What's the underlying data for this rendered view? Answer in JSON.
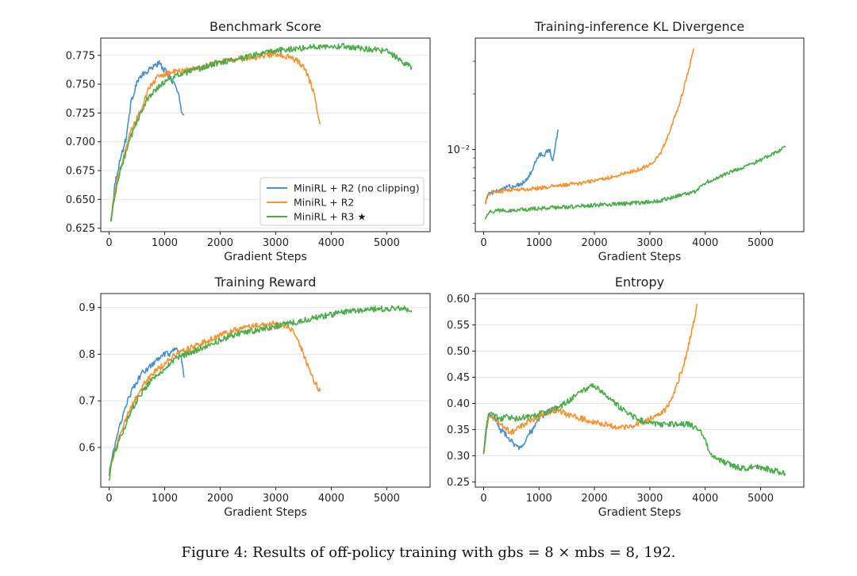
{
  "figure_caption": "Figure 4: Results of off-policy training with gbs = 8 × mbs = 8, 192.",
  "series_colors": {
    "r2_noclip": "#4a90c8",
    "r2": "#f5922f",
    "r3": "#4cac4c"
  },
  "chart_data": [
    {
      "type": "line",
      "title": "Benchmark Score",
      "xlabel": "Gradient Steps",
      "ylabel": "",
      "xlim": [
        -150,
        5780
      ],
      "ylim": [
        0.622,
        0.79
      ],
      "yscale": "linear",
      "xticks": [
        0,
        1000,
        2000,
        3000,
        4000,
        5000
      ],
      "xtick_labels": [
        "0",
        "1000",
        "2000",
        "3000",
        "4000",
        "5000"
      ],
      "yticks": [
        0.625,
        0.65,
        0.675,
        0.7,
        0.725,
        0.75,
        0.775
      ],
      "ytick_labels": [
        "0.625",
        "0.650",
        "0.675",
        "0.700",
        "0.725",
        "0.750",
        "0.775"
      ],
      "grid": "horizontal",
      "legend": "bottom-right",
      "legend_entries": [
        "MiniRL + R2 (no clipping)",
        "MiniRL + R2",
        "MiniRL + R3 ★"
      ],
      "series": [
        {
          "name": "MiniRL + R2 (no clipping)",
          "color_key": "r2_noclip",
          "x": [
            30,
            100,
            200,
            300,
            400,
            500,
            600,
            700,
            800,
            900,
            1000,
            1100,
            1200,
            1260,
            1300,
            1350
          ],
          "y": [
            0.63,
            0.662,
            0.685,
            0.702,
            0.735,
            0.752,
            0.758,
            0.761,
            0.766,
            0.768,
            0.762,
            0.756,
            0.748,
            0.738,
            0.727,
            0.723
          ]
        },
        {
          "name": "MiniRL + R2",
          "color_key": "r2",
          "x": [
            30,
            100,
            200,
            300,
            400,
            500,
            600,
            700,
            800,
            900,
            1000,
            1200,
            1400,
            1600,
            1800,
            2000,
            2200,
            2400,
            2600,
            2800,
            3000,
            3200,
            3400,
            3500,
            3600,
            3700,
            3800
          ],
          "y": [
            0.63,
            0.655,
            0.677,
            0.695,
            0.71,
            0.72,
            0.73,
            0.745,
            0.752,
            0.757,
            0.759,
            0.761,
            0.762,
            0.764,
            0.767,
            0.77,
            0.771,
            0.772,
            0.773,
            0.775,
            0.776,
            0.774,
            0.77,
            0.765,
            0.755,
            0.74,
            0.715
          ]
        },
        {
          "name": "MiniRL + R3 ★",
          "color_key": "r3",
          "x": [
            30,
            100,
            200,
            300,
            400,
            500,
            600,
            700,
            800,
            1000,
            1200,
            1400,
            1600,
            1800,
            2000,
            2200,
            2400,
            2600,
            2800,
            3000,
            3200,
            3400,
            3600,
            3800,
            4000,
            4200,
            4400,
            4600,
            4800,
            5000,
            5200,
            5300,
            5400,
            5450
          ],
          "y": [
            0.63,
            0.652,
            0.675,
            0.69,
            0.705,
            0.718,
            0.728,
            0.737,
            0.744,
            0.752,
            0.757,
            0.76,
            0.763,
            0.766,
            0.769,
            0.771,
            0.773,
            0.775,
            0.777,
            0.779,
            0.78,
            0.781,
            0.782,
            0.783,
            0.783,
            0.783,
            0.782,
            0.781,
            0.78,
            0.778,
            0.773,
            0.768,
            0.766,
            0.765
          ]
        }
      ]
    },
    {
      "type": "line",
      "title": "Training-inference KL Divergence",
      "xlabel": "Gradient Steps",
      "ylabel": "",
      "xlim": [
        -150,
        5780
      ],
      "ylim": [
        0.0036,
        0.04
      ],
      "yscale": "log",
      "xticks": [
        0,
        1000,
        2000,
        3000,
        4000,
        5000
      ],
      "xtick_labels": [
        "0",
        "1000",
        "2000",
        "3000",
        "4000",
        "5000"
      ],
      "yticks": [
        0.01
      ],
      "ytick_labels": [
        "10⁻²"
      ],
      "grid": "none",
      "legend": "none",
      "series": [
        {
          "name": "MiniRL + R2 (no clipping)",
          "color_key": "r2_noclip",
          "x": [
            30,
            100,
            200,
            300,
            400,
            450,
            500,
            600,
            700,
            800,
            850,
            900,
            950,
            1000,
            1050,
            1100,
            1150,
            1200,
            1250,
            1300,
            1350
          ],
          "y": [
            0.0052,
            0.0058,
            0.0059,
            0.006,
            0.0062,
            0.0064,
            0.0063,
            0.0064,
            0.0066,
            0.007,
            0.0075,
            0.008,
            0.0088,
            0.0093,
            0.0095,
            0.0094,
            0.0098,
            0.0099,
            0.0085,
            0.011,
            0.0128
          ]
        },
        {
          "name": "MiniRL + R2",
          "color_key": "r2",
          "x": [
            30,
            100,
            200,
            400,
            600,
            800,
            1000,
            1200,
            1400,
            1600,
            1800,
            2000,
            2200,
            2400,
            2600,
            2800,
            3000,
            3100,
            3200,
            3300,
            3400,
            3500,
            3600,
            3700,
            3800
          ],
          "y": [
            0.0052,
            0.0058,
            0.0059,
            0.006,
            0.0061,
            0.0061,
            0.0062,
            0.0063,
            0.0064,
            0.0065,
            0.0066,
            0.0068,
            0.007,
            0.0072,
            0.0075,
            0.0078,
            0.0083,
            0.0088,
            0.0097,
            0.0113,
            0.0135,
            0.0163,
            0.0205,
            0.027,
            0.035
          ]
        },
        {
          "name": "MiniRL + R3 ★",
          "color_key": "r3",
          "x": [
            30,
            100,
            300,
            600,
            1000,
            1500,
            2000,
            2500,
            3000,
            3200,
            3400,
            3600,
            3800,
            3900,
            4000,
            4200,
            4400,
            4600,
            4800,
            5000,
            5200,
            5400,
            5450
          ],
          "y": [
            0.0043,
            0.0046,
            0.0047,
            0.0047,
            0.0048,
            0.0049,
            0.005,
            0.0051,
            0.0052,
            0.0053,
            0.0055,
            0.0057,
            0.0059,
            0.0062,
            0.0066,
            0.007,
            0.0074,
            0.0078,
            0.0083,
            0.0088,
            0.0094,
            0.0101,
            0.0103
          ]
        }
      ]
    },
    {
      "type": "line",
      "title": "Training Reward",
      "xlabel": "Gradient Steps",
      "ylabel": "",
      "xlim": [
        -150,
        5780
      ],
      "ylim": [
        0.515,
        0.93
      ],
      "yscale": "linear",
      "xticks": [
        0,
        1000,
        2000,
        3000,
        4000,
        5000
      ],
      "xtick_labels": [
        "0",
        "1000",
        "2000",
        "3000",
        "4000",
        "5000"
      ],
      "yticks": [
        0.6,
        0.7,
        0.8,
        0.9
      ],
      "ytick_labels": [
        "0.6",
        "0.7",
        "0.8",
        "0.9"
      ],
      "grid": "horizontal",
      "legend": "none",
      "series": [
        {
          "name": "MiniRL + R2 (no clipping)",
          "color_key": "r2_noclip",
          "x": [
            0,
            50,
            100,
            200,
            300,
            400,
            500,
            600,
            700,
            800,
            900,
            1000,
            1100,
            1200,
            1300,
            1350
          ],
          "y": [
            0.54,
            0.58,
            0.6,
            0.65,
            0.69,
            0.72,
            0.74,
            0.76,
            0.77,
            0.78,
            0.79,
            0.8,
            0.8,
            0.81,
            0.79,
            0.75
          ]
        },
        {
          "name": "MiniRL + R2",
          "color_key": "r2",
          "x": [
            0,
            50,
            100,
            200,
            300,
            400,
            600,
            800,
            1000,
            1200,
            1400,
            1600,
            1800,
            2000,
            2200,
            2400,
            2600,
            2800,
            3000,
            3200,
            3300,
            3400,
            3500,
            3600,
            3700,
            3800
          ],
          "y": [
            0.54,
            0.57,
            0.59,
            0.63,
            0.66,
            0.69,
            0.73,
            0.76,
            0.78,
            0.8,
            0.81,
            0.82,
            0.83,
            0.84,
            0.85,
            0.855,
            0.86,
            0.865,
            0.865,
            0.86,
            0.85,
            0.83,
            0.8,
            0.77,
            0.74,
            0.72
          ]
        },
        {
          "name": "MiniRL + R3 ★",
          "color_key": "r3",
          "x": [
            0,
            50,
            100,
            200,
            300,
            400,
            600,
            800,
            1000,
            1200,
            1400,
            1600,
            1800,
            2000,
            2200,
            2400,
            2600,
            2800,
            3000,
            3200,
            3400,
            3600,
            3800,
            4000,
            4200,
            4400,
            4600,
            4800,
            5000,
            5200,
            5400,
            5450
          ],
          "y": [
            0.53,
            0.57,
            0.59,
            0.62,
            0.65,
            0.68,
            0.72,
            0.75,
            0.77,
            0.79,
            0.8,
            0.81,
            0.82,
            0.83,
            0.84,
            0.845,
            0.85,
            0.855,
            0.86,
            0.865,
            0.87,
            0.875,
            0.88,
            0.885,
            0.89,
            0.893,
            0.895,
            0.897,
            0.898,
            0.898,
            0.897,
            0.89
          ]
        }
      ]
    },
    {
      "type": "line",
      "title": "Entropy",
      "xlabel": "Gradient Steps",
      "ylabel": "",
      "xlim": [
        -150,
        5780
      ],
      "ylim": [
        0.24,
        0.61
      ],
      "yscale": "linear",
      "xticks": [
        0,
        1000,
        2000,
        3000,
        4000,
        5000
      ],
      "xtick_labels": [
        "0",
        "1000",
        "2000",
        "3000",
        "4000",
        "5000"
      ],
      "yticks": [
        0.25,
        0.3,
        0.35,
        0.4,
        0.45,
        0.5,
        0.55,
        0.6
      ],
      "ytick_labels": [
        "0.25",
        "0.30",
        "0.35",
        "0.40",
        "0.45",
        "0.50",
        "0.55",
        "0.60"
      ],
      "grid": "horizontal",
      "legend": "none",
      "series": [
        {
          "name": "MiniRL + R2 (no clipping)",
          "color_key": "r2_noclip",
          "x": [
            0,
            50,
            100,
            200,
            300,
            400,
            500,
            600,
            700,
            800,
            900,
            1000,
            1100,
            1200,
            1300,
            1350
          ],
          "y": [
            0.3,
            0.35,
            0.38,
            0.37,
            0.35,
            0.34,
            0.33,
            0.315,
            0.32,
            0.34,
            0.35,
            0.37,
            0.38,
            0.385,
            0.39,
            0.39
          ]
        },
        {
          "name": "MiniRL + R2",
          "color_key": "r2",
          "x": [
            0,
            50,
            100,
            200,
            300,
            400,
            500,
            600,
            800,
            1000,
            1200,
            1400,
            1600,
            1800,
            2000,
            2200,
            2400,
            2600,
            2800,
            3000,
            3200,
            3300,
            3400,
            3500,
            3600,
            3700,
            3800,
            3850
          ],
          "y": [
            0.3,
            0.35,
            0.38,
            0.37,
            0.36,
            0.35,
            0.345,
            0.35,
            0.365,
            0.375,
            0.385,
            0.385,
            0.375,
            0.37,
            0.365,
            0.36,
            0.355,
            0.355,
            0.36,
            0.37,
            0.38,
            0.39,
            0.41,
            0.44,
            0.47,
            0.51,
            0.56,
            0.59
          ]
        },
        {
          "name": "MiniRL + R3 ★",
          "color_key": "r3",
          "x": [
            0,
            50,
            100,
            200,
            300,
            400,
            600,
            800,
            1000,
            1200,
            1400,
            1600,
            1800,
            1950,
            2100,
            2300,
            2500,
            2700,
            2900,
            3100,
            3300,
            3500,
            3700,
            3900,
            4000,
            4100,
            4300,
            4500,
            4700,
            4900,
            5100,
            5300,
            5450
          ],
          "y": [
            0.3,
            0.36,
            0.38,
            0.375,
            0.37,
            0.375,
            0.37,
            0.375,
            0.38,
            0.385,
            0.395,
            0.41,
            0.425,
            0.435,
            0.425,
            0.405,
            0.39,
            0.375,
            0.365,
            0.36,
            0.36,
            0.36,
            0.36,
            0.35,
            0.33,
            0.3,
            0.29,
            0.28,
            0.275,
            0.28,
            0.275,
            0.27,
            0.265
          ]
        }
      ]
    }
  ]
}
